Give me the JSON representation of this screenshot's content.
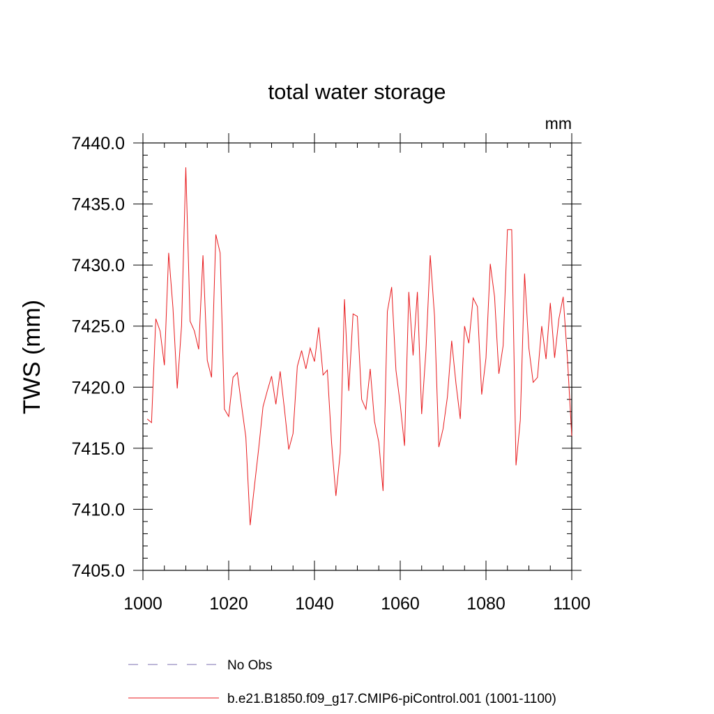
{
  "chart_data": {
    "type": "line",
    "title": "total water storage",
    "units_label": "mm",
    "xlabel": "",
    "ylabel": "TWS  (mm)",
    "xlim": [
      1000,
      1100
    ],
    "ylim": [
      7405,
      7440
    ],
    "x_ticks": [
      1000,
      1020,
      1040,
      1060,
      1080,
      1100
    ],
    "x_tick_labels": [
      "1000",
      "1020",
      "1040",
      "1060",
      "1080",
      "1100"
    ],
    "y_ticks": [
      7405,
      7410,
      7415,
      7420,
      7425,
      7430,
      7435,
      7440
    ],
    "y_tick_labels": [
      "7405.0",
      "7410.0",
      "7415.0",
      "7420.0",
      "7425.0",
      "7430.0",
      "7435.0",
      "7440.0"
    ],
    "grid": false,
    "legend_position": "bottom",
    "legend": [
      {
        "label": "No Obs",
        "style": "dashed",
        "color": "#7b6fb0"
      },
      {
        "label": "b.e21.B1850.f09_g17.CMIP6-piControl.001 (1001-1100)",
        "style": "solid",
        "color": "#e8191c"
      }
    ],
    "series": [
      {
        "name": "b.e21.B1850.f09_g17.CMIP6-piControl.001 (1001-1100)",
        "color": "#e8191c",
        "x": [
          1001,
          1002,
          1003,
          1004,
          1005,
          1006,
          1007,
          1008,
          1009,
          1010,
          1011,
          1012,
          1013,
          1014,
          1015,
          1016,
          1017,
          1018,
          1019,
          1020,
          1021,
          1022,
          1023,
          1024,
          1025,
          1026,
          1027,
          1028,
          1029,
          1030,
          1031,
          1032,
          1033,
          1034,
          1035,
          1036,
          1037,
          1038,
          1039,
          1040,
          1041,
          1042,
          1043,
          1044,
          1045,
          1046,
          1047,
          1048,
          1049,
          1050,
          1051,
          1052,
          1053,
          1054,
          1055,
          1056,
          1057,
          1058,
          1059,
          1060,
          1061,
          1062,
          1063,
          1064,
          1065,
          1066,
          1067,
          1068,
          1069,
          1070,
          1071,
          1072,
          1073,
          1074,
          1075,
          1076,
          1077,
          1078,
          1079,
          1080,
          1081,
          1082,
          1083,
          1084,
          1085,
          1086,
          1087,
          1088,
          1089,
          1090,
          1091,
          1092,
          1093,
          1094,
          1095,
          1096,
          1097,
          1098,
          1099,
          1100
        ],
        "values": [
          7417.4,
          7417.1,
          7425.6,
          7424.6,
          7421.8,
          7431.0,
          7426.5,
          7419.9,
          7425.0,
          7438.0,
          7425.4,
          7424.6,
          7423.1,
          7430.8,
          7422.2,
          7420.8,
          7432.5,
          7431.0,
          7418.2,
          7417.6,
          7420.8,
          7421.2,
          7418.5,
          7415.9,
          7408.7,
          7411.9,
          7415.0,
          7418.4,
          7419.7,
          7420.9,
          7418.6,
          7421.3,
          7418.2,
          7414.9,
          7416.2,
          7421.7,
          7423.0,
          7421.5,
          7423.2,
          7422.1,
          7424.9,
          7421.0,
          7421.4,
          7415.4,
          7411.1,
          7414.6,
          7427.2,
          7419.7,
          7426.0,
          7425.8,
          7419.0,
          7418.2,
          7421.5,
          7417.2,
          7415.5,
          7411.5,
          7426.2,
          7428.2,
          7421.4,
          7418.6,
          7415.2,
          7427.8,
          7422.6,
          7427.8,
          7417.8,
          7423.0,
          7430.8,
          7425.8,
          7415.1,
          7416.6,
          7419.2,
          7423.8,
          7420.3,
          7417.4,
          7425.0,
          7423.6,
          7427.3,
          7426.6,
          7419.4,
          7422.4,
          7430.1,
          7427.4,
          7421.1,
          7423.4,
          7432.9,
          7432.9,
          7413.6,
          7417.3,
          7429.3,
          7423.2,
          7420.4,
          7420.8,
          7425.0,
          7422.3,
          7426.9,
          7422.4,
          7425.6,
          7427.4,
          7422.3,
          7416.0
        ]
      }
    ]
  }
}
